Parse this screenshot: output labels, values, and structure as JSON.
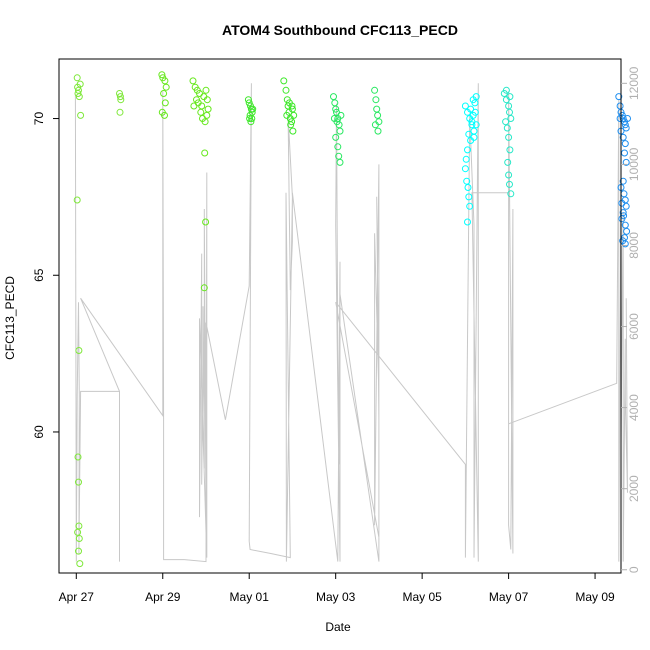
{
  "chart_data": {
    "type": "scatter",
    "title": "ATOM4 Southbound CFC113_PECD",
    "xlabel": "Date",
    "ylabel": "CFC113_PECD",
    "x_unit": "days since Apr 27",
    "xlim": [
      -0.4,
      12.6
    ],
    "ylim": [
      55.5,
      71.9
    ],
    "y2lim": [
      -80,
      12600
    ],
    "x_ticks": [
      {
        "value": 0,
        "label": "Apr 27"
      },
      {
        "value": 2,
        "label": "Apr 29"
      },
      {
        "value": 4,
        "label": "May 01"
      },
      {
        "value": 6,
        "label": "May 03"
      },
      {
        "value": 8,
        "label": "May 05"
      },
      {
        "value": 10,
        "label": "May 07"
      },
      {
        "value": 12,
        "label": "May 09"
      }
    ],
    "y_ticks": [
      60,
      65,
      70
    ],
    "y2_ticks": [
      0,
      2000,
      4000,
      6000,
      8000,
      10000,
      12000
    ],
    "series": [
      {
        "name": "CFC113_PECD",
        "color": "#7fe83a",
        "points": [
          [
            0.02,
            71.3
          ],
          [
            0.03,
            71.0
          ],
          [
            0.05,
            70.9
          ],
          [
            0.07,
            70.7
          ],
          [
            0.09,
            71.1
          ],
          [
            0.04,
            70.8
          ],
          [
            0.1,
            70.1
          ],
          [
            0.02,
            67.4
          ],
          [
            0.06,
            62.6
          ],
          [
            0.04,
            59.2
          ],
          [
            0.05,
            58.4
          ],
          [
            0.06,
            57.0
          ],
          [
            0.03,
            56.8
          ],
          [
            0.07,
            56.6
          ],
          [
            0.05,
            56.2
          ],
          [
            0.08,
            55.8
          ],
          [
            1.0,
            70.8
          ],
          [
            1.02,
            70.7
          ],
          [
            1.03,
            70.6
          ],
          [
            1.01,
            70.2
          ]
        ]
      },
      {
        "name": "CFC113_PECD",
        "color": "#66e81c",
        "points": [
          [
            1.98,
            71.4
          ],
          [
            2.0,
            71.3
          ],
          [
            2.05,
            71.2
          ],
          [
            2.08,
            71.0
          ],
          [
            2.02,
            70.8
          ],
          [
            2.06,
            70.5
          ],
          [
            1.99,
            70.2
          ],
          [
            2.04,
            70.1
          ],
          [
            2.7,
            71.2
          ],
          [
            2.75,
            71.0
          ],
          [
            2.8,
            70.9
          ],
          [
            2.85,
            70.8
          ],
          [
            2.78,
            70.6
          ],
          [
            2.82,
            70.5
          ],
          [
            2.9,
            70.4
          ],
          [
            2.95,
            70.7
          ],
          [
            3.0,
            70.9
          ],
          [
            3.03,
            70.6
          ],
          [
            3.05,
            70.3
          ],
          [
            2.72,
            70.4
          ],
          [
            2.88,
            70.2
          ],
          [
            2.92,
            70.0
          ],
          [
            2.98,
            69.9
          ],
          [
            3.02,
            70.1
          ],
          [
            2.97,
            68.9
          ],
          [
            2.99,
            66.7
          ],
          [
            2.96,
            64.6
          ]
        ]
      },
      {
        "name": "CFC113_PECD",
        "color": "#3ee82a",
        "points": [
          [
            3.98,
            70.6
          ],
          [
            4.0,
            70.5
          ],
          [
            4.03,
            70.4
          ],
          [
            4.05,
            70.3
          ],
          [
            4.07,
            70.2
          ],
          [
            4.02,
            70.1
          ],
          [
            4.06,
            70.0
          ],
          [
            4.04,
            69.9
          ],
          [
            4.08,
            70.3
          ],
          [
            4.01,
            70.0
          ],
          [
            4.8,
            71.2
          ],
          [
            4.85,
            70.9
          ],
          [
            4.88,
            70.6
          ],
          [
            4.9,
            70.4
          ],
          [
            4.92,
            70.2
          ],
          [
            4.95,
            70.0
          ],
          [
            4.98,
            69.9
          ],
          [
            5.0,
            70.3
          ],
          [
            5.03,
            70.1
          ],
          [
            4.87,
            70.1
          ],
          [
            4.93,
            70.5
          ],
          [
            4.96,
            69.8
          ],
          [
            4.99,
            70.4
          ],
          [
            5.01,
            69.6
          ]
        ]
      },
      {
        "name": "CFC113_PECD",
        "color": "#28e860",
        "points": [
          [
            5.95,
            70.7
          ],
          [
            5.98,
            70.5
          ],
          [
            6.0,
            70.3
          ],
          [
            6.02,
            70.2
          ],
          [
            6.05,
            70.0
          ],
          [
            6.08,
            69.8
          ],
          [
            6.1,
            69.6
          ],
          [
            6.0,
            69.4
          ],
          [
            6.05,
            69.1
          ],
          [
            6.07,
            68.8
          ],
          [
            6.1,
            68.6
          ],
          [
            5.97,
            70.0
          ],
          [
            6.12,
            70.1
          ],
          [
            6.03,
            69.9
          ],
          [
            6.9,
            70.9
          ],
          [
            6.93,
            70.6
          ],
          [
            6.95,
            70.3
          ],
          [
            6.97,
            70.1
          ],
          [
            7.0,
            69.9
          ],
          [
            6.92,
            69.8
          ],
          [
            6.98,
            69.6
          ]
        ]
      },
      {
        "name": "CFC113_PECD",
        "color": "#00ffff",
        "points": [
          [
            9.0,
            70.4
          ],
          [
            9.05,
            70.2
          ],
          [
            9.1,
            70.0
          ],
          [
            9.15,
            69.8
          ],
          [
            9.2,
            69.6
          ],
          [
            9.22,
            70.5
          ],
          [
            9.25,
            70.7
          ],
          [
            9.18,
            70.1
          ],
          [
            9.08,
            69.5
          ],
          [
            9.12,
            69.3
          ],
          [
            9.05,
            69.0
          ],
          [
            9.02,
            68.7
          ],
          [
            9.0,
            68.4
          ],
          [
            9.03,
            68.0
          ],
          [
            9.06,
            67.8
          ],
          [
            9.08,
            67.5
          ],
          [
            9.1,
            67.2
          ],
          [
            9.05,
            66.7
          ],
          [
            9.15,
            69.9
          ],
          [
            9.2,
            69.4
          ],
          [
            9.12,
            70.3
          ],
          [
            9.18,
            70.6
          ],
          [
            9.25,
            69.8
          ],
          [
            9.23,
            70.2
          ]
        ]
      },
      {
        "name": "CFC113_PECD",
        "color": "#27e8c8",
        "points": [
          [
            9.9,
            70.8
          ],
          [
            9.95,
            70.6
          ],
          [
            10.0,
            70.4
          ],
          [
            10.02,
            70.2
          ],
          [
            10.05,
            70.0
          ],
          [
            9.93,
            69.9
          ],
          [
            9.97,
            69.7
          ],
          [
            10.0,
            69.4
          ],
          [
            10.03,
            69.0
          ],
          [
            9.98,
            68.6
          ],
          [
            10.0,
            68.2
          ],
          [
            10.02,
            67.9
          ],
          [
            10.05,
            67.6
          ],
          [
            9.95,
            70.9
          ],
          [
            10.03,
            70.7
          ]
        ]
      },
      {
        "name": "CFC113_PECD",
        "color": "#1f8ff0",
        "points": [
          [
            12.55,
            70.7
          ],
          [
            12.58,
            70.4
          ],
          [
            12.6,
            70.2
          ],
          [
            12.63,
            70.1
          ],
          [
            12.65,
            70.0
          ],
          [
            12.68,
            69.9
          ],
          [
            12.7,
            69.8
          ],
          [
            12.6,
            69.6
          ],
          [
            12.65,
            69.4
          ],
          [
            12.7,
            69.2
          ],
          [
            12.68,
            68.9
          ],
          [
            12.72,
            68.6
          ],
          [
            12.65,
            68.0
          ],
          [
            12.6,
            67.8
          ],
          [
            12.67,
            67.6
          ],
          [
            12.7,
            67.4
          ],
          [
            12.72,
            67.2
          ],
          [
            12.65,
            67.0
          ],
          [
            12.62,
            66.8
          ],
          [
            12.7,
            66.6
          ],
          [
            12.73,
            66.4
          ],
          [
            12.68,
            66.2
          ],
          [
            12.64,
            66.1
          ],
          [
            12.7,
            66.0
          ],
          [
            12.66,
            66.9
          ],
          [
            12.62,
            67.3
          ],
          [
            12.58,
            70.0
          ],
          [
            12.75,
            70.0
          ],
          [
            12.72,
            69.7
          ]
        ]
      }
    ],
    "secondary_line": {
      "axis": "right",
      "color": "#c8c8c8",
      "points": [
        [
          -0.02,
          11700
        ],
        [
          0.0,
          200
        ],
        [
          0.02,
          4300
        ],
        [
          0.05,
          6600
        ],
        [
          0.07,
          4300
        ],
        [
          0.06,
          400
        ],
        [
          0.1,
          4400
        ],
        [
          1.0,
          4400
        ],
        [
          1.0,
          200
        ],
        [
          1.0,
          4400
        ],
        [
          0.1,
          6700
        ],
        [
          2.0,
          3800
        ],
        [
          2.0,
          11800
        ],
        [
          2.02,
          3600
        ],
        [
          2.02,
          250
        ],
        [
          2.5,
          250
        ],
        [
          3.0,
          200
        ],
        [
          3.02,
          9800
        ],
        [
          3.02,
          300
        ],
        [
          2.85,
          6200
        ],
        [
          2.85,
          1300
        ],
        [
          2.9,
          7800
        ],
        [
          2.9,
          2100
        ],
        [
          2.93,
          5100
        ],
        [
          2.93,
          6500
        ],
        [
          2.96,
          2500
        ],
        [
          2.96,
          8900
        ],
        [
          3.0,
          1100
        ],
        [
          3.0,
          6100
        ],
        [
          3.45,
          3700
        ],
        [
          4.0,
          7000
        ],
        [
          4.05,
          12000
        ],
        [
          4.0,
          700
        ],
        [
          4.02,
          500
        ],
        [
          4.5,
          400
        ],
        [
          4.95,
          300
        ],
        [
          4.85,
          9300
        ],
        [
          4.86,
          200
        ],
        [
          5.0,
          9200
        ],
        [
          4.9,
          11200
        ],
        [
          4.95,
          6900
        ],
        [
          5.0,
          8100
        ],
        [
          5.0,
          9300
        ],
        [
          6.05,
          200
        ],
        [
          6.1,
          7600
        ],
        [
          6.1,
          200
        ],
        [
          6.0,
          8500
        ],
        [
          6.02,
          11500
        ],
        [
          6.05,
          5500
        ],
        [
          6.08,
          2600
        ],
        [
          6.1,
          6800
        ],
        [
          7.0,
          200
        ],
        [
          7.0,
          3700
        ],
        [
          6.95,
          9200
        ],
        [
          7.0,
          4300
        ],
        [
          6.9,
          8300
        ],
        [
          6.9,
          1100
        ],
        [
          7.0,
          10000
        ],
        [
          7.0,
          800
        ],
        [
          6.0,
          6600
        ],
        [
          9.0,
          2600
        ],
        [
          9.0,
          1300
        ],
        [
          9.0,
          300
        ],
        [
          9.1,
          11200
        ],
        [
          9.2,
          8500
        ],
        [
          9.2,
          300
        ],
        [
          9.3,
          12000
        ],
        [
          9.3,
          6800
        ],
        [
          9.3,
          200
        ],
        [
          9.15,
          9300
        ],
        [
          9.25,
          9300
        ],
        [
          10.0,
          9300
        ],
        [
          10.0,
          1100
        ],
        [
          10.05,
          500
        ],
        [
          10.1,
          8900
        ],
        [
          10.1,
          400
        ],
        [
          10.0,
          11800
        ],
        [
          10.0,
          3600
        ],
        [
          12.5,
          4600
        ],
        [
          12.55,
          11600
        ],
        [
          12.55,
          200
        ],
        [
          12.6,
          9600
        ],
        [
          12.6,
          3100
        ],
        [
          12.65,
          8800
        ],
        [
          12.65,
          200
        ],
        [
          12.7,
          5700
        ],
        [
          12.7,
          4200
        ],
        [
          12.75,
          1900
        ],
        [
          12.72,
          6700
        ]
      ]
    }
  }
}
